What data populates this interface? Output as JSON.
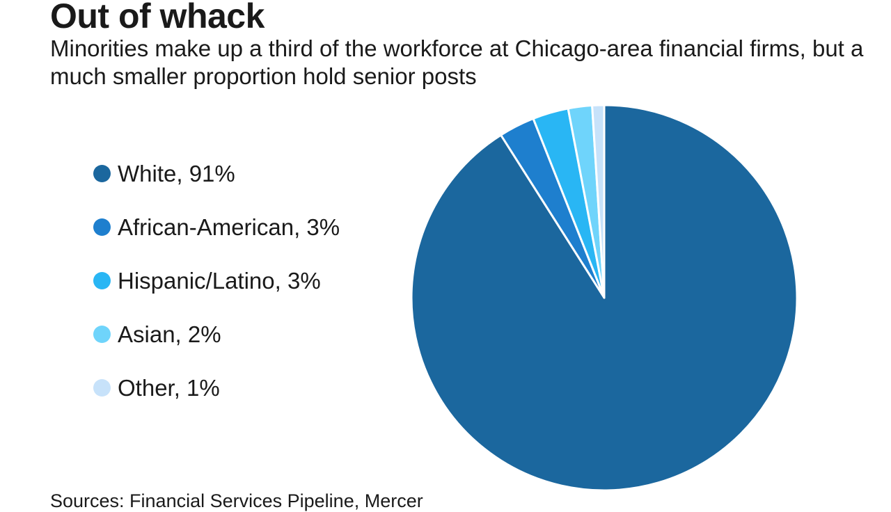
{
  "title": "Out of whack",
  "subtitle": "Minorities make up a third of the workforce at Chicago-area financial firms, but a much smaller proportion hold senior posts",
  "source": "Sources: Financial Services Pipeline, Mercer",
  "chart_data": {
    "type": "pie",
    "start": "12 o'clock",
    "direction": "clockwise",
    "slices": [
      {
        "label": "White, 91%",
        "name": "White",
        "value": 91,
        "color": "#1b679e"
      },
      {
        "label": "African-American, 3%",
        "name": "African-American",
        "value": 3,
        "color": "#1e7fce"
      },
      {
        "label": "Hispanic/Latino, 3%",
        "name": "Hispanic/Latino",
        "value": 3,
        "color": "#29b6f4"
      },
      {
        "label": "Asian, 2%",
        "name": "Asian",
        "value": 2,
        "color": "#6fd4fb"
      },
      {
        "label": "Other, 1%",
        "name": "Other",
        "value": 1,
        "color": "#c7e2fa"
      }
    ],
    "slice_border_color": "#ffffff",
    "legend_position": "left"
  }
}
